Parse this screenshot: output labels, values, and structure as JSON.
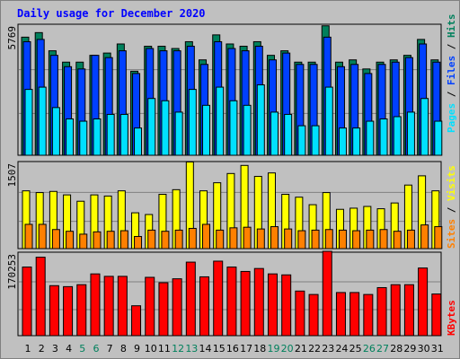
{
  "title": "Daily usage for December 2020",
  "colors": {
    "hits": "#00805c",
    "files": "#0040ff",
    "pages": "#00e0ff",
    "visits": "#ff8000",
    "sites": "#ffff00",
    "kbytes": "#ff0000",
    "title": "#0000ff",
    "weekend_day": "#00805c",
    "weekday": "#000000"
  },
  "chart_data": [
    {
      "type": "bar",
      "title": "Daily usage for December 2020",
      "panel": "top",
      "ylabel_max": "5769",
      "ylim": [
        0,
        5769
      ],
      "categories": [
        "1",
        "2",
        "3",
        "4",
        "5",
        "6",
        "7",
        "8",
        "9",
        "10",
        "11",
        "12",
        "13",
        "14",
        "15",
        "16",
        "17",
        "18",
        "19",
        "20",
        "21",
        "22",
        "23",
        "24",
        "25",
        "26",
        "27",
        "28",
        "29",
        "30",
        "31"
      ],
      "series": [
        {
          "name": "Hits",
          "values": [
            5200,
            5400,
            4600,
            4100,
            4100,
            4400,
            4500,
            4900,
            3700,
            4800,
            4800,
            4700,
            5000,
            4200,
            5300,
            4900,
            4800,
            5000,
            4400,
            4600,
            4100,
            4100,
            5700,
            4100,
            4200,
            3800,
            4100,
            4200,
            4400,
            5100,
            4200
          ]
        },
        {
          "name": "Files",
          "values": [
            5000,
            5100,
            4400,
            3900,
            3800,
            4400,
            4300,
            4600,
            3600,
            4700,
            4600,
            4600,
            4800,
            4000,
            5000,
            4700,
            4600,
            4800,
            4200,
            4500,
            4000,
            4000,
            5200,
            3900,
            4000,
            3600,
            4000,
            4100,
            4300,
            4900,
            4100
          ]
        },
        {
          "name": "Pages",
          "values": [
            2900,
            3000,
            2100,
            1600,
            1500,
            1600,
            1800,
            1800,
            1200,
            2500,
            2400,
            1900,
            2900,
            2200,
            3000,
            2400,
            2200,
            3100,
            1900,
            1800,
            1300,
            1300,
            3000,
            1200,
            1200,
            1500,
            1600,
            1700,
            1900,
            2500,
            1500
          ]
        },
        {
          "name": "Visits",
          "values": [
            420,
            420,
            330,
            300,
            250,
            290,
            300,
            310,
            210,
            320,
            300,
            320,
            350,
            420,
            320,
            360,
            370,
            340,
            380,
            340,
            310,
            320,
            330,
            320,
            310,
            320,
            330,
            300,
            320,
            410,
            380
          ]
        },
        {
          "name": "Sites",
          "values": [
            1000,
            970,
            990,
            930,
            820,
            930,
            910,
            1000,
            620,
            590,
            940,
            1020,
            1500,
            1000,
            1140,
            1300,
            1440,
            1250,
            1310,
            940,
            890,
            760,
            970,
            680,
            700,
            730,
            690,
            790,
            1100,
            1260,
            1000
          ]
        }
      ]
    },
    {
      "type": "bar",
      "panel": "middle",
      "ylabel_max": "1507",
      "ylim": [
        0,
        1507
      ]
    },
    {
      "type": "bar",
      "panel": "bottom",
      "ylabel_max": "170253",
      "ylim": [
        0,
        170253
      ],
      "categories": [
        "1",
        "2",
        "3",
        "4",
        "5",
        "6",
        "7",
        "8",
        "9",
        "10",
        "11",
        "12",
        "13",
        "14",
        "15",
        "16",
        "17",
        "18",
        "19",
        "20",
        "21",
        "22",
        "23",
        "24",
        "25",
        "26",
        "27",
        "28",
        "29",
        "30",
        "31"
      ],
      "series": [
        {
          "name": "KBytes",
          "values": [
            140000,
            160000,
            102000,
            100000,
            104000,
            126000,
            121000,
            121000,
            61000,
            119000,
            108000,
            116000,
            150000,
            120000,
            152000,
            140000,
            131000,
            137000,
            126000,
            124000,
            91000,
            84000,
            172000,
            88000,
            88000,
            84000,
            98000,
            104000,
            104000,
            138000,
            85000
          ]
        }
      ]
    }
  ],
  "right_labels": {
    "top": [
      "Pages",
      " / ",
      "Files",
      " / ",
      "Hits"
    ],
    "middle": [
      "Sites",
      " / ",
      "Visits"
    ],
    "bottom": [
      "KBytes"
    ]
  },
  "weekend_days": [
    "5",
    "6",
    "12",
    "13",
    "19",
    "20",
    "26",
    "27"
  ]
}
